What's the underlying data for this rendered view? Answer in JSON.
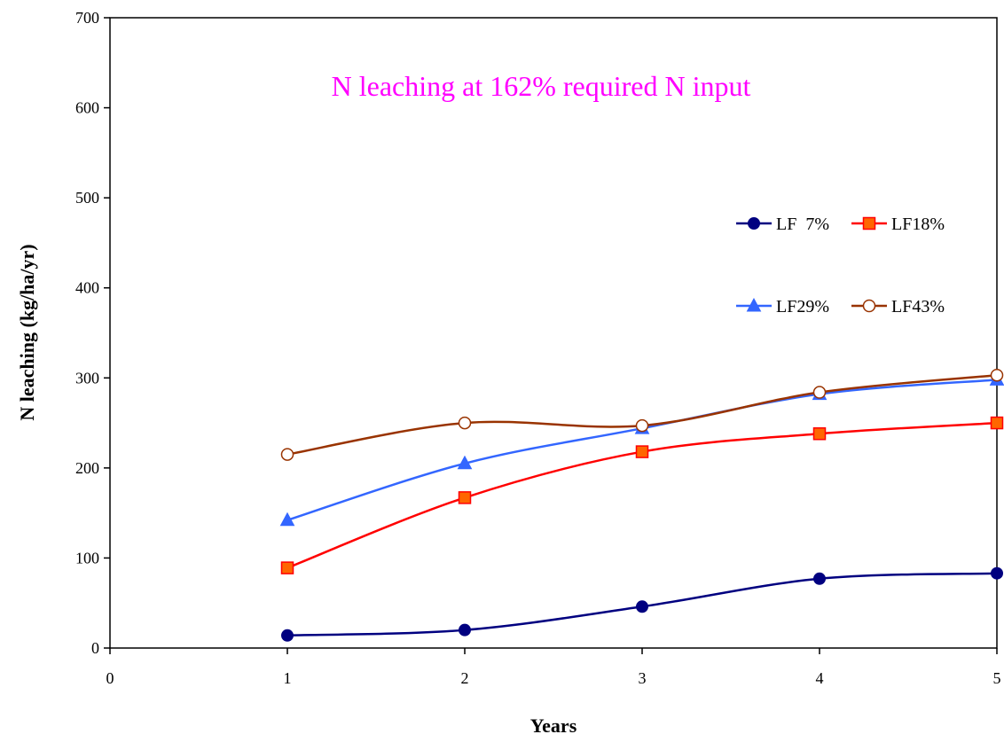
{
  "chart_data": {
    "type": "line",
    "title": "N leaching at 162% required N input",
    "title_color": "#ff00ff",
    "xlabel": "Years",
    "ylabel": "N leaching (kg/ha/yr)",
    "xlim": [
      0,
      5
    ],
    "ylim": [
      0,
      700
    ],
    "x_ticks": [
      0,
      1,
      2,
      3,
      4,
      5
    ],
    "y_ticks": [
      0,
      100,
      200,
      300,
      400,
      500,
      600,
      700
    ],
    "grid": false,
    "legend_position": "right",
    "x": [
      1,
      2,
      3,
      4,
      5
    ],
    "series": [
      {
        "name": "LF  7%",
        "values": [
          14,
          20,
          46,
          77,
          83
        ],
        "color": "#000080",
        "marker": "circle-filled"
      },
      {
        "name": "LF18%",
        "values": [
          89,
          167,
          218,
          238,
          250
        ],
        "color": "#ff0000",
        "marker": "square",
        "marker_fill": "#ff6600"
      },
      {
        "name": "LF29%",
        "values": [
          142,
          205,
          244,
          282,
          298
        ],
        "color": "#3366ff",
        "marker": "triangle"
      },
      {
        "name": "LF43%",
        "values": [
          215,
          250,
          247,
          284,
          303
        ],
        "color": "#993300",
        "marker": "circle-open"
      }
    ]
  }
}
